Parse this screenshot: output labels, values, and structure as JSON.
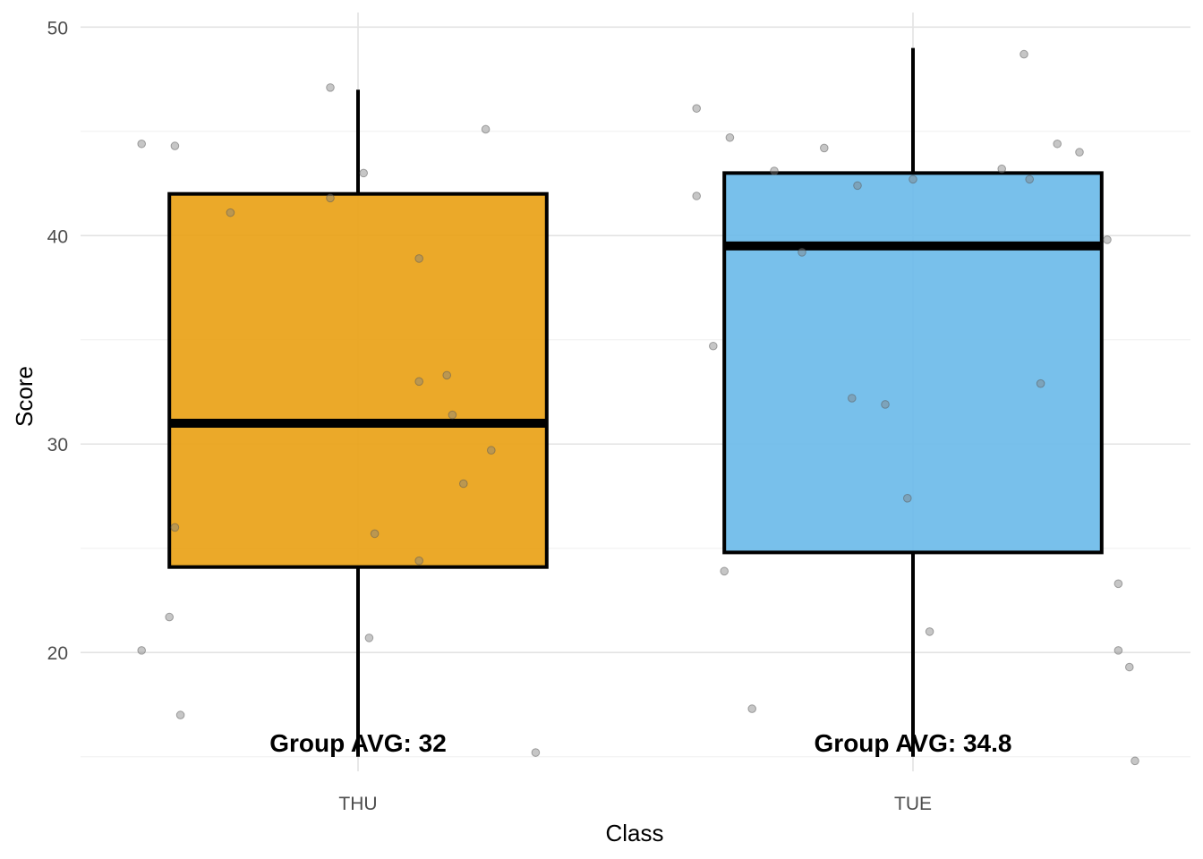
{
  "chart_data": {
    "type": "boxplot",
    "title": "",
    "xlabel": "Class",
    "ylabel": "Score",
    "ylim": [
      14.3,
      50.7
    ],
    "y_ticks": [
      20,
      30,
      40,
      50
    ],
    "grid": true,
    "legend": "none",
    "categories": [
      "THU",
      "TUE"
    ],
    "boxes": [
      {
        "category": "THU",
        "color": "#E9A217",
        "whisker_low": 15.0,
        "q1": 24.1,
        "median": 31.0,
        "q3": 42.0,
        "whisker_high": 47.0,
        "avg_label": "Group AVG: 32",
        "points": [
          {
            "dx": -0.39,
            "y": 44.4
          },
          {
            "dx": -0.33,
            "y": 44.3
          },
          {
            "dx": -0.23,
            "y": 41.1
          },
          {
            "dx": -0.05,
            "y": 47.1
          },
          {
            "dx": 0.01,
            "y": 43.0
          },
          {
            "dx": 0.23,
            "y": 45.1
          },
          {
            "dx": -0.05,
            "y": 41.8
          },
          {
            "dx": 0.11,
            "y": 38.9
          },
          {
            "dx": 0.11,
            "y": 33.0
          },
          {
            "dx": 0.16,
            "y": 33.3
          },
          {
            "dx": 0.17,
            "y": 31.4
          },
          {
            "dx": 0.24,
            "y": 29.7
          },
          {
            "dx": 0.19,
            "y": 28.1
          },
          {
            "dx": -0.33,
            "y": 26.0
          },
          {
            "dx": 0.03,
            "y": 25.7
          },
          {
            "dx": 0.11,
            "y": 24.4
          },
          {
            "dx": -0.34,
            "y": 21.7
          },
          {
            "dx": -0.39,
            "y": 20.1
          },
          {
            "dx": 0.02,
            "y": 20.7
          },
          {
            "dx": -0.32,
            "y": 17.0
          },
          {
            "dx": 0.32,
            "y": 15.2
          }
        ]
      },
      {
        "category": "TUE",
        "color": "#6DBBE9",
        "whisker_low": 15.0,
        "q1": 24.8,
        "median": 39.5,
        "q3": 43.0,
        "whisker_high": 49.0,
        "avg_label": "Group AVG: 34.8",
        "points": [
          {
            "dx": -0.39,
            "y": 46.1
          },
          {
            "dx": -0.33,
            "y": 44.7
          },
          {
            "dx": -0.16,
            "y": 44.2
          },
          {
            "dx": -0.25,
            "y": 43.1
          },
          {
            "dx": -0.39,
            "y": 41.9
          },
          {
            "dx": -0.1,
            "y": 42.4
          },
          {
            "dx": 0.0,
            "y": 42.7
          },
          {
            "dx": 0.16,
            "y": 43.2
          },
          {
            "dx": 0.2,
            "y": 48.7
          },
          {
            "dx": 0.26,
            "y": 44.4
          },
          {
            "dx": 0.3,
            "y": 44.0
          },
          {
            "dx": 0.21,
            "y": 42.7
          },
          {
            "dx": 0.35,
            "y": 39.8
          },
          {
            "dx": -0.2,
            "y": 39.2
          },
          {
            "dx": -0.36,
            "y": 34.7
          },
          {
            "dx": -0.11,
            "y": 32.2
          },
          {
            "dx": -0.05,
            "y": 31.9
          },
          {
            "dx": 0.23,
            "y": 32.9
          },
          {
            "dx": -0.01,
            "y": 27.4
          },
          {
            "dx": -0.34,
            "y": 23.9
          },
          {
            "dx": 0.37,
            "y": 23.3
          },
          {
            "dx": 0.03,
            "y": 21.0
          },
          {
            "dx": 0.37,
            "y": 20.1
          },
          {
            "dx": 0.39,
            "y": 19.3
          },
          {
            "dx": -0.29,
            "y": 17.3
          },
          {
            "dx": 0.4,
            "y": 14.8
          }
        ]
      }
    ]
  }
}
